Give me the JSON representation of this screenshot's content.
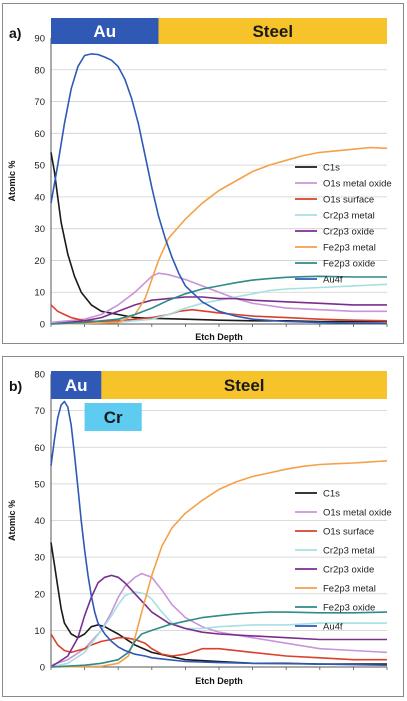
{
  "chart_data": [
    {
      "type": "line",
      "panel_label": "a)",
      "xlabel": "Etch Depth",
      "ylabel": "Atomic %",
      "ylim": [
        0,
        90
      ],
      "yticks": [
        0,
        10,
        20,
        30,
        40,
        50,
        60,
        70,
        80,
        90
      ],
      "xlim": [
        0,
        100
      ],
      "grid": true,
      "legend_position": "right",
      "regions": [
        {
          "label": "Au",
          "x_start": 0,
          "x_end": 32,
          "color": "#2f59b5",
          "text_color": "#ffffff",
          "row": 0
        },
        {
          "label": "Steel",
          "x_start": 32,
          "x_end": 100,
          "color": "#f6c32a",
          "text_color": "#1a1a1a",
          "row": 0
        }
      ],
      "series": [
        {
          "name": "C1s",
          "color": "#1a1a1a",
          "x": [
            0,
            1,
            2,
            3,
            5,
            7,
            9,
            12,
            15,
            20,
            25,
            30,
            40,
            50,
            60,
            70,
            80,
            90,
            100
          ],
          "y": [
            54,
            48,
            40,
            32,
            22,
            15,
            10,
            6,
            4,
            3,
            2,
            1.8,
            1.5,
            1.2,
            1,
            1,
            0.8,
            0.8,
            0.8
          ]
        },
        {
          "name": "O1s metal oxide",
          "color": "#c994d9",
          "x": [
            0,
            5,
            10,
            15,
            20,
            25,
            28,
            30,
            32,
            35,
            40,
            45,
            50,
            55,
            60,
            70,
            80,
            90,
            100
          ],
          "y": [
            0.5,
            1,
            1.5,
            3,
            6,
            10,
            13,
            15,
            16,
            15.5,
            14,
            12,
            10,
            8,
            6.5,
            5,
            4.5,
            4,
            4
          ]
        },
        {
          "name": "O1s surface",
          "color": "#d9412b",
          "x": [
            0,
            2,
            4,
            6,
            8,
            10,
            15,
            20,
            25,
            30,
            35,
            38,
            42,
            46,
            50,
            55,
            60,
            70,
            80,
            90,
            100
          ],
          "y": [
            6,
            4,
            3,
            2,
            1.5,
            1,
            0.8,
            1,
            1.5,
            2,
            3,
            4,
            4.5,
            4,
            3.5,
            3,
            2.5,
            2,
            1.5,
            1.2,
            1
          ]
        },
        {
          "name": "Cr2p3 metal",
          "color": "#a8dfe3",
          "x": [
            0,
            10,
            20,
            30,
            35,
            40,
            45,
            50,
            55,
            60,
            65,
            70,
            80,
            90,
            100
          ],
          "y": [
            0,
            0.2,
            0.5,
            1.5,
            3,
            5,
            6.5,
            7.5,
            8.5,
            9.5,
            10.5,
            11,
            11.5,
            12,
            12.5
          ]
        },
        {
          "name": "Cr2p3 oxide",
          "color": "#7b2d8e",
          "x": [
            0,
            10,
            15,
            20,
            25,
            30,
            35,
            40,
            45,
            50,
            55,
            60,
            70,
            80,
            90,
            100
          ],
          "y": [
            0,
            1,
            2,
            4,
            6,
            7.5,
            8,
            8.5,
            8.5,
            8,
            8,
            7.5,
            7,
            6.5,
            6,
            6
          ]
        },
        {
          "name": "Fe2p3 metal",
          "color": "#f5a14a",
          "x": [
            0,
            20,
            25,
            28,
            30,
            32,
            35,
            40,
            45,
            50,
            55,
            60,
            65,
            70,
            75,
            80,
            85,
            90,
            95,
            100
          ],
          "y": [
            0,
            0.5,
            3,
            8,
            14,
            20,
            27,
            33,
            38,
            42,
            45,
            48,
            50,
            51.5,
            53,
            54,
            54.5,
            55,
            55.5,
            55.3
          ]
        },
        {
          "name": "Fe2p3 oxide",
          "color": "#2f8a8a",
          "x": [
            0,
            10,
            20,
            25,
            30,
            35,
            40,
            45,
            50,
            55,
            60,
            65,
            70,
            75,
            80,
            90,
            100
          ],
          "y": [
            0,
            0.5,
            1.5,
            3,
            5,
            7.5,
            9.5,
            11,
            12,
            13,
            13.8,
            14.3,
            14.7,
            14.9,
            15,
            14.8,
            14.8
          ]
        },
        {
          "name": "Au4f",
          "color": "#2f59b5",
          "x": [
            0,
            2,
            4,
            6,
            8,
            10,
            12,
            14,
            16,
            18,
            20,
            22,
            24,
            26,
            28,
            30,
            32,
            34,
            36,
            38,
            40,
            45,
            50,
            55,
            60,
            70,
            80,
            90,
            100
          ],
          "y": [
            38,
            50,
            63,
            74,
            81,
            84.5,
            85,
            84.8,
            84,
            83,
            81,
            77,
            71,
            63,
            53,
            43,
            34,
            27,
            21,
            16,
            12,
            7,
            4,
            2.5,
            1.5,
            0.8,
            0.5,
            0.3,
            0.2
          ]
        }
      ]
    },
    {
      "type": "line",
      "panel_label": "b)",
      "xlabel": "Etch Depth",
      "ylabel": "Atomic %",
      "ylim": [
        0,
        80
      ],
      "yticks": [
        0,
        10,
        20,
        30,
        40,
        50,
        60,
        70,
        80
      ],
      "xlim": [
        0,
        100
      ],
      "grid": true,
      "legend_position": "right",
      "regions": [
        {
          "label": "Au",
          "x_start": 0,
          "x_end": 15,
          "color": "#2f59b5",
          "text_color": "#ffffff",
          "row": 0
        },
        {
          "label": "Steel",
          "x_start": 15,
          "x_end": 100,
          "color": "#f6c32a",
          "text_color": "#1a1a1a",
          "row": 0
        },
        {
          "label": "Cr",
          "x_start": 10,
          "x_end": 27,
          "color": "#5ecbf0",
          "text_color": "#1a1a1a",
          "row": 1
        }
      ],
      "series": [
        {
          "name": "C1s",
          "color": "#1a1a1a",
          "x": [
            0,
            1,
            2,
            3,
            4,
            6,
            8,
            10,
            12,
            14,
            16,
            18,
            20,
            25,
            30,
            40,
            50,
            60,
            70,
            80,
            90,
            100
          ],
          "y": [
            34,
            28,
            22,
            16,
            12,
            9,
            8,
            9,
            11,
            11.5,
            11,
            10,
            9,
            6,
            4,
            2,
            1.5,
            1,
            1,
            0.8,
            0.8,
            0.8
          ]
        },
        {
          "name": "O1s metal oxide",
          "color": "#c994d9",
          "x": [
            0,
            5,
            10,
            15,
            18,
            20,
            22,
            25,
            27,
            30,
            33,
            36,
            40,
            45,
            50,
            60,
            70,
            80,
            90,
            100
          ],
          "y": [
            0.5,
            2,
            5,
            10,
            15,
            19,
            22,
            24.5,
            25.5,
            24.5,
            21,
            17,
            13.5,
            11,
            9.5,
            8,
            6.5,
            5,
            4.5,
            4
          ]
        },
        {
          "name": "O1s surface",
          "color": "#d9412b",
          "x": [
            0,
            2,
            4,
            6,
            8,
            10,
            12,
            15,
            18,
            20,
            22,
            25,
            28,
            30,
            33,
            36,
            40,
            45,
            50,
            60,
            70,
            80,
            90,
            100
          ],
          "y": [
            9,
            6,
            4.5,
            4,
            4.5,
            5,
            6,
            7,
            7.5,
            8,
            8,
            7.5,
            6.5,
            5,
            3.5,
            3,
            3.5,
            5,
            5,
            4,
            3,
            2.5,
            2,
            2
          ]
        },
        {
          "name": "Cr2p3 metal",
          "color": "#a8dfe3",
          "x": [
            0,
            5,
            10,
            15,
            18,
            20,
            22,
            25,
            28,
            30,
            33,
            36,
            40,
            45,
            50,
            60,
            70,
            80,
            90,
            100
          ],
          "y": [
            0,
            1,
            4,
            10,
            14,
            17,
            19.5,
            20.5,
            20,
            18.5,
            15,
            12,
            10.5,
            10.5,
            11,
            11.5,
            11.5,
            12,
            12,
            12
          ]
        },
        {
          "name": "Cr2p3 oxide",
          "color": "#7b2d8e",
          "x": [
            0,
            5,
            8,
            10,
            12,
            14,
            16,
            18,
            20,
            22,
            25,
            28,
            30,
            35,
            40,
            45,
            50,
            60,
            70,
            80,
            90,
            100
          ],
          "y": [
            0,
            3,
            8,
            14,
            19,
            23,
            24.5,
            25,
            24.5,
            23,
            20,
            17,
            15,
            12,
            10.5,
            9.5,
            9,
            8.5,
            8,
            7.5,
            7.5,
            7.5
          ]
        },
        {
          "name": "Fe2p3 metal",
          "color": "#f5a14a",
          "x": [
            0,
            15,
            20,
            23,
            25,
            27,
            30,
            33,
            36,
            40,
            45,
            50,
            55,
            60,
            65,
            70,
            75,
            80,
            85,
            90,
            95,
            100
          ],
          "y": [
            0,
            0.2,
            1,
            3,
            8,
            15,
            25,
            33,
            38,
            42,
            45.5,
            48.5,
            50.5,
            52,
            53,
            54,
            54.8,
            55.3,
            55.5,
            55.7,
            56,
            56.3
          ]
        },
        {
          "name": "Fe2p3 oxide",
          "color": "#2f8a8a",
          "x": [
            0,
            10,
            15,
            20,
            23,
            25,
            27,
            30,
            35,
            40,
            45,
            50,
            55,
            60,
            65,
            70,
            80,
            90,
            100
          ],
          "y": [
            0,
            0.5,
            1,
            2,
            4,
            7,
            9,
            10,
            11.5,
            12.5,
            13.5,
            14,
            14.5,
            14.8,
            15,
            15,
            14.8,
            14.8,
            15
          ]
        },
        {
          "name": "Au4f",
          "color": "#2f59b5",
          "x": [
            0,
            1,
            2,
            3,
            4,
            5,
            6,
            7,
            8,
            9,
            10,
            11,
            12,
            13,
            14,
            16,
            18,
            20,
            22,
            25,
            28,
            30,
            35,
            40,
            50,
            60,
            80,
            100
          ],
          "y": [
            55,
            62,
            68,
            71.5,
            72.5,
            71,
            66,
            58,
            49,
            40,
            32,
            25,
            19.5,
            15,
            12,
            9,
            7,
            5.5,
            4.5,
            3.5,
            3,
            2.5,
            2,
            1.5,
            1.2,
            1,
            0.8,
            0.5
          ]
        }
      ]
    }
  ]
}
